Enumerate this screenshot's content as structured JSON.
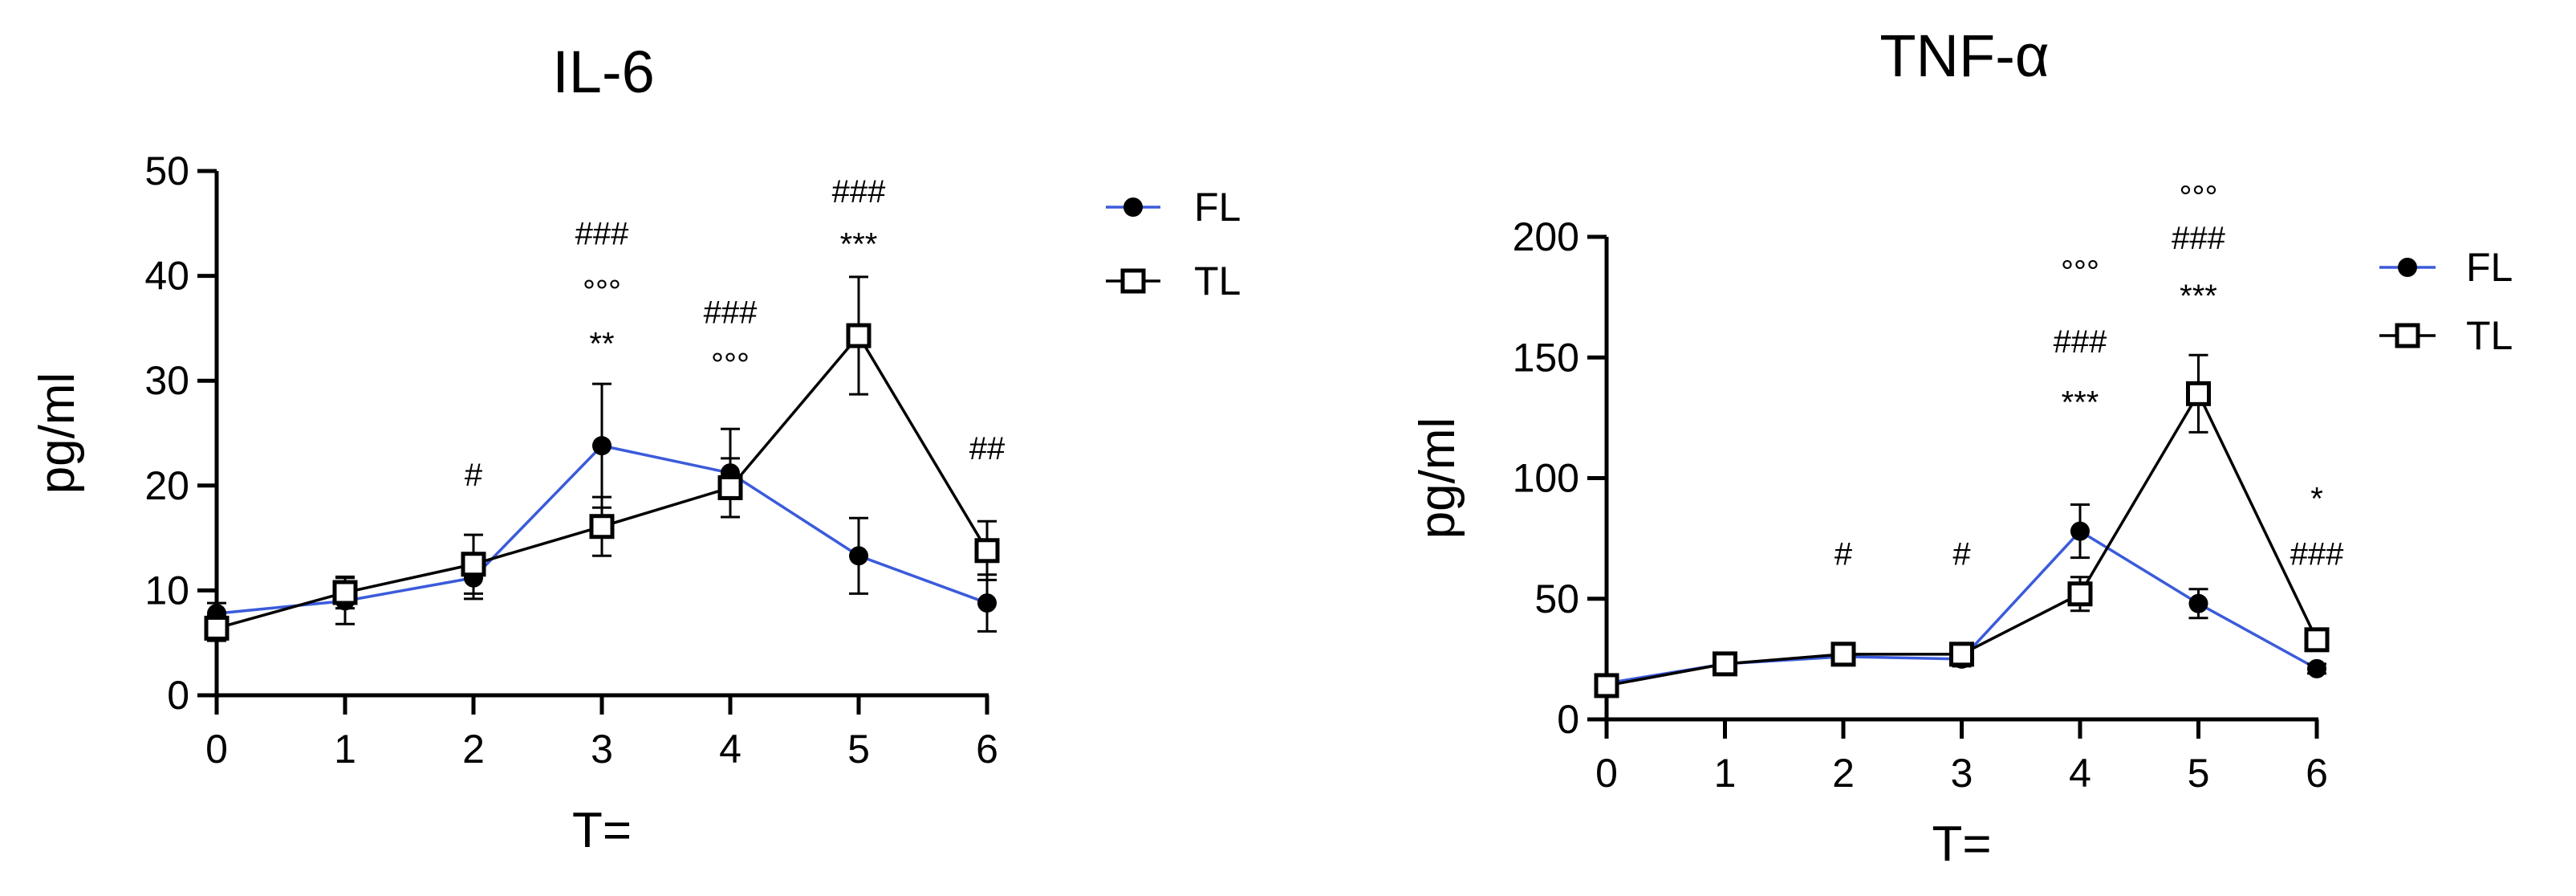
{
  "chart_data": [
    {
      "type": "line",
      "title": "IL-6",
      "xlabel": "T=",
      "ylabel": "pg/ml",
      "categories": [
        "0",
        "1",
        "2",
        "3",
        "4",
        "5",
        "6"
      ],
      "x": [
        0,
        1,
        2,
        3,
        4,
        5,
        6
      ],
      "ylim": [
        0,
        50
      ],
      "yticks": [
        "0",
        "10",
        "20",
        "30",
        "40",
        "50"
      ],
      "grid": false,
      "legend": "top-right",
      "series": [
        {
          "name": "FL",
          "color": "#3b5bdb",
          "marker": "filled-circle",
          "values": [
            7.8,
            9.0,
            11.2,
            23.8,
            21.2,
            13.3,
            8.8
          ],
          "errors": [
            1.0,
            2.2,
            2.0,
            5.9,
            4.2,
            3.6,
            2.7
          ]
        },
        {
          "name": "TL",
          "color": "#000000",
          "marker": "open-square",
          "values": [
            6.4,
            9.8,
            12.5,
            16.1,
            19.8,
            34.3,
            13.8
          ],
          "errors": [
            1.2,
            1.5,
            2.8,
            2.8,
            2.8,
            5.6,
            2.8
          ]
        }
      ],
      "annotations": [
        {
          "x": 2,
          "y": 20.0,
          "text": "#"
        },
        {
          "x": 3,
          "y": 32.5,
          "text": "**"
        },
        {
          "x": 3,
          "y": 37.5,
          "text": "°°°"
        },
        {
          "x": 3,
          "y": 43.0,
          "text": "###"
        },
        {
          "x": 4,
          "y": 30.5,
          "text": "°°°"
        },
        {
          "x": 4,
          "y": 35.5,
          "text": "###"
        },
        {
          "x": 5,
          "y": 42.0,
          "text": "***"
        },
        {
          "x": 5,
          "y": 47.0,
          "text": "###"
        },
        {
          "x": 6,
          "y": 22.5,
          "text": "##"
        }
      ]
    },
    {
      "type": "line",
      "title": "TNF-α",
      "xlabel": "T=",
      "ylabel": "pg/ml",
      "categories": [
        "0",
        "1",
        "2",
        "3",
        "4",
        "5",
        "6"
      ],
      "x": [
        0,
        1,
        2,
        3,
        4,
        5,
        6
      ],
      "ylim": [
        0,
        200
      ],
      "yticks": [
        "0",
        "50",
        "100",
        "150",
        "200"
      ],
      "grid": false,
      "legend": "top-right",
      "series": [
        {
          "name": "FL",
          "color": "#3b5bdb",
          "marker": "filled-circle",
          "values": [
            15,
            23,
            26,
            25,
            78,
            48,
            21
          ],
          "errors": [
            2,
            2,
            3,
            3,
            11,
            6,
            2
          ]
        },
        {
          "name": "TL",
          "color": "#000000",
          "marker": "open-square",
          "values": [
            14,
            23,
            27,
            27,
            52,
            135,
            33
          ],
          "errors": [
            2,
            2,
            3,
            3,
            7,
            16,
            3
          ]
        }
      ],
      "annotations": [
        {
          "x": 2,
          "y": 64,
          "text": "#"
        },
        {
          "x": 3,
          "y": 64,
          "text": "#"
        },
        {
          "x": 4,
          "y": 127,
          "text": "***"
        },
        {
          "x": 4,
          "y": 152,
          "text": "###"
        },
        {
          "x": 4,
          "y": 181,
          "text": "°°°"
        },
        {
          "x": 5,
          "y": 171,
          "text": "***"
        },
        {
          "x": 5,
          "y": 195,
          "text": "###"
        },
        {
          "x": 5,
          "y": 212,
          "text": "°°°"
        },
        {
          "x": 6,
          "y": 64,
          "text": "###"
        },
        {
          "x": 6,
          "y": 87,
          "text": "*"
        }
      ]
    }
  ]
}
